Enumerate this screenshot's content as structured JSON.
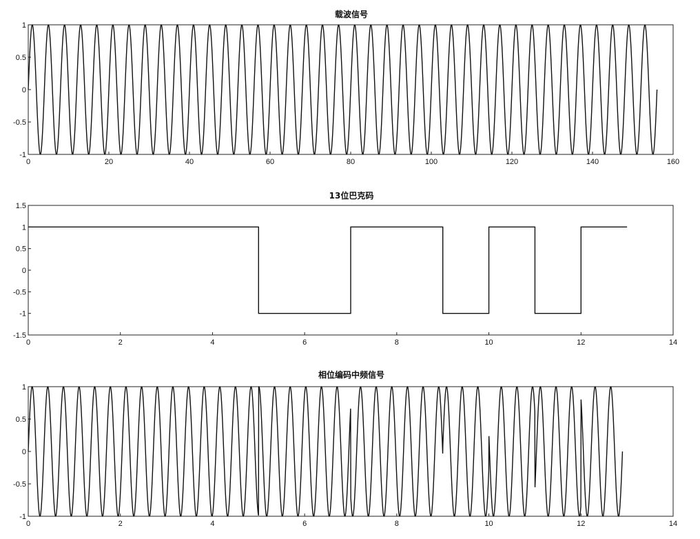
{
  "chart_data": [
    {
      "type": "line",
      "title": "载波信号",
      "xlabel": "",
      "ylabel": "",
      "xlim": [
        0,
        160
      ],
      "ylim": [
        -1,
        1
      ],
      "xticks": [
        "0",
        "20",
        "40",
        "60",
        "80",
        "100",
        "120",
        "140",
        "160"
      ],
      "yticks": [
        "-1",
        "-0.5",
        "0",
        "0.5",
        "1"
      ],
      "grid": false,
      "signal": "sinusoid",
      "x_start": 0,
      "x_end": 156,
      "cycles": 39,
      "amplitude": 1
    },
    {
      "type": "line",
      "title": "13位巴克码",
      "xlabel": "",
      "ylabel": "",
      "xlim": [
        0,
        14
      ],
      "ylim": [
        -1.5,
        1.5
      ],
      "xticks": [
        "0",
        "2",
        "4",
        "6",
        "8",
        "10",
        "12",
        "14"
      ],
      "yticks": [
        "-1.5",
        "-1",
        "-0.5",
        "0",
        "0.5",
        "1",
        "1.5"
      ],
      "grid": false,
      "signal": "step",
      "x": [
        0,
        5,
        5,
        7,
        7,
        9,
        9,
        10,
        10,
        11,
        11,
        12,
        12,
        13
      ],
      "y": [
        1,
        1,
        -1,
        -1,
        1,
        1,
        -1,
        -1,
        1,
        1,
        -1,
        -1,
        1,
        1
      ]
    },
    {
      "type": "line",
      "title": "相位编码中频信号",
      "xlabel": "",
      "ylabel": "",
      "xlim": [
        0,
        14
      ],
      "ylim": [
        -1,
        1
      ],
      "xticks": [
        "0",
        "2",
        "4",
        "6",
        "8",
        "10",
        "12",
        "14"
      ],
      "yticks": [
        "-1",
        "-0.5",
        "0",
        "0.5",
        "1"
      ],
      "grid": false,
      "signal": "phase-coded sinusoid",
      "x_start": 0,
      "x_end": 12.9,
      "cycles": 38,
      "amplitude": 1,
      "code": [
        1,
        1,
        1,
        1,
        1,
        -1,
        -1,
        1,
        1,
        -1,
        1,
        -1,
        1
      ]
    }
  ]
}
